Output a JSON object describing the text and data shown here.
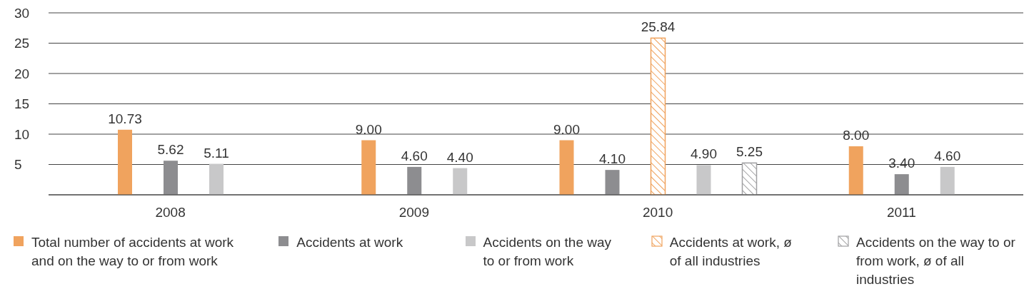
{
  "chart_data": {
    "type": "bar",
    "categories": [
      "2008",
      "2009",
      "2010",
      "2011"
    ],
    "series": [
      {
        "name": "Total number of accidents at work and on the way to or from work",
        "color": "#f0a35e",
        "values": [
          10.73,
          9.0,
          9.0,
          8.0
        ],
        "value_labels": [
          "10.73",
          "9.00",
          "9.00",
          "8.00"
        ]
      },
      {
        "name": "Accidents at work",
        "color": "#8d8d90",
        "values": [
          5.62,
          4.6,
          4.1,
          3.4
        ],
        "value_labels": [
          "5.62",
          "4.60",
          "4.10",
          "3.40"
        ]
      },
      {
        "name": "Accidents at work, ø of all industries",
        "color": "#f0a35e",
        "values": [
          null,
          null,
          25.84,
          null
        ],
        "value_labels": [
          null,
          null,
          "25.84",
          null
        ]
      },
      {
        "name": "Accidents on the way to or from work",
        "color": "#c8c8c9",
        "values": [
          5.11,
          4.4,
          4.9,
          4.6
        ],
        "value_labels": [
          "5.11",
          "4.40",
          "4.90",
          "4.60"
        ]
      },
      {
        "name": "Accidents on the way to or from work, ø of all industries",
        "color": "#a0a0a2",
        "values": [
          null,
          null,
          5.25,
          null
        ],
        "value_labels": [
          null,
          null,
          "5.25",
          null
        ]
      }
    ],
    "ylim": [
      0,
      30
    ],
    "yticks": [
      {
        "value": 0,
        "label": null
      },
      5,
      10,
      15,
      20,
      25,
      30
    ],
    "grid": "y",
    "legend": "bottom"
  }
}
